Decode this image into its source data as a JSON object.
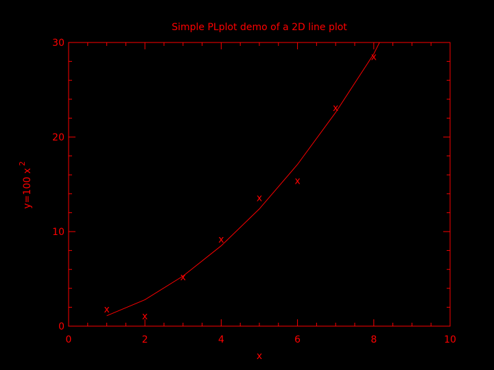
{
  "colors": {
    "background": "#000000",
    "foreground": "#ff0000"
  },
  "chart_data": {
    "type": "line",
    "title": "Simple PLplot demo of a 2D line plot",
    "xlabel": "x",
    "ylabel_main": "y=100 x",
    "ylabel_superscript": "2",
    "xlim": [
      0,
      10
    ],
    "ylim": [
      0,
      30
    ],
    "x_major_ticks": [
      0,
      2,
      4,
      6,
      8,
      10
    ],
    "x_tick_labels": [
      "0",
      "2",
      "4",
      "6",
      "8",
      "10"
    ],
    "y_major_ticks": [
      0,
      10,
      20,
      30
    ],
    "y_tick_labels": [
      "0",
      "10",
      "20",
      "30"
    ],
    "grid": false,
    "series": [
      {
        "type": "line",
        "x": [
          1,
          2,
          3,
          4,
          5,
          6,
          7,
          8,
          8.15
        ],
        "y": [
          1.1,
          2.8,
          5.3,
          8.5,
          12.4,
          17.1,
          22.6,
          28.8,
          30
        ]
      },
      {
        "type": "scatter",
        "marker_label": "x",
        "x": [
          1,
          2,
          3,
          4,
          5,
          6,
          7,
          8
        ],
        "y": [
          1.8,
          1.1,
          5.2,
          9.2,
          13.6,
          15.4,
          23.1,
          28.5
        ]
      }
    ]
  }
}
